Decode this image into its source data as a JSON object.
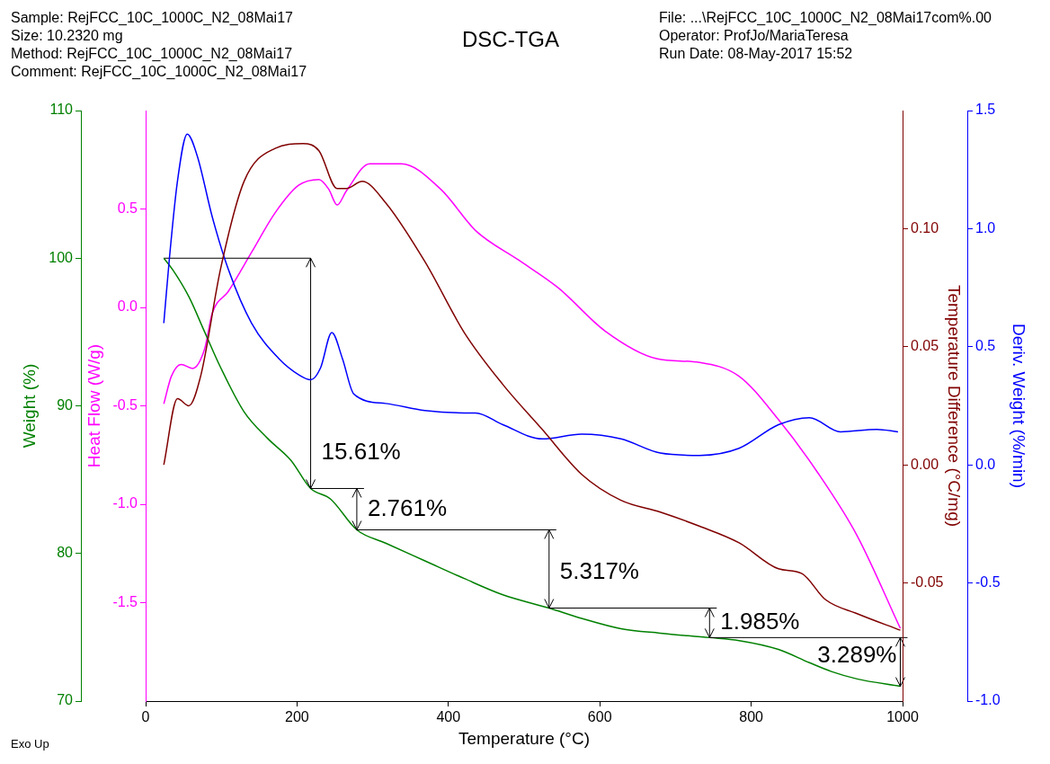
{
  "chart_data": [
    {
      "type": "line",
      "title": "DSC-TGA",
      "xlabel": "Temperature (°C)",
      "ylabel": "Weight (%)",
      "y2label": "Heat Flow (W/g)",
      "xlim": [
        0,
        1000
      ],
      "xticks": [
        0,
        200,
        400,
        600,
        800,
        1000
      ],
      "ylim": [
        70,
        110
      ],
      "yticks": [
        70,
        80,
        90,
        100,
        110
      ],
      "y2lim": [
        -2,
        1
      ],
      "y2ticks": [
        {
          "value": -1.5,
          "label": "-1.5"
        },
        {
          "value": -1,
          "label": "-1.0"
        },
        {
          "value": -0.5,
          "label": "-0.5"
        },
        {
          "value": 0,
          "label": "0.0"
        },
        {
          "value": 0.5,
          "label": "0.5"
        }
      ],
      "series": [
        {
          "color": "#008000",
          "x": [
            24,
            36,
            57,
            78,
            99,
            130,
            161,
            192,
            218,
            244,
            279,
            317,
            369,
            421,
            472,
            533,
            576,
            628,
            680,
            745,
            784,
            836,
            877,
            906,
            940,
            997
          ],
          "values": [
            100,
            99.2,
            97.4,
            95,
            92.6,
            89.6,
            87.8,
            86.3,
            84.4,
            83.7,
            81.6,
            80.7,
            79.5,
            78.3,
            77.2,
            76.3,
            75.6,
            74.9,
            74.6,
            74.3,
            74.1,
            73.5,
            72.6,
            72,
            71.5,
            71
          ]
        },
        {
          "type": "line",
          "color": "#000000",
          "x": [
            24,
            218
          ],
          "values": [
            100,
            100
          ]
        },
        {
          "color": "#ff00ff",
          "axis": "y2",
          "x": [
            24,
            34,
            47,
            62,
            78,
            88,
            109,
            140,
            171,
            202,
            229,
            242,
            253,
            265,
            296,
            338,
            390,
            436,
            493,
            545,
            607,
            675,
            732,
            784,
            836,
            888,
            940,
            997
          ],
          "values": [
            -0.49,
            -0.35,
            -0.29,
            -0.31,
            -0.21,
            -0.03,
            0.08,
            0.28,
            0.48,
            0.62,
            0.65,
            0.6,
            0.52,
            0.59,
            0.73,
            0.73,
            0.6,
            0.39,
            0.24,
            0.1,
            -0.12,
            -0.26,
            -0.28,
            -0.35,
            -0.57,
            -0.84,
            -1.16,
            -1.63
          ]
        }
      ],
      "annotations": [
        "Sample: RejFCC_10C_1000C_N2_08Mai17",
        "Size: 10.2320 mg",
        "Method: RejFCC_10C_1000C_N2_08Mai17",
        "Comment: RejFCC_10C_1000C_N2_08Mai17",
        "File: ...\\RejFCC_10C_1000C_N2_08Mai17com%.00",
        "Operator: ProfJo/MariaTeresa",
        "Run Date: 08-May-2017 15:52",
        "Exo Up",
        {
          "text": "15.61%",
          "x": 218,
          "y": 84.4
        },
        {
          "text": "2.761%",
          "x": 279,
          "y": 81.6
        },
        {
          "text": "5.317%",
          "x": 533,
          "y": 76.3
        },
        {
          "text": "1.985%",
          "x": 745,
          "y": 74.3
        },
        {
          "text": "3.289%",
          "x": 997,
          "y": 71
        }
      ],
      "grid": false,
      "legend": false,
      "marker": "none",
      "line_style": "solid"
    },
    {
      "type": "line",
      "ylabel": "Temperature Difference (°C/mg)",
      "y2label": "Deriv. Weight (%/min)",
      "xlim": [
        0,
        1000
      ],
      "ylim": [
        -0.1,
        0.15
      ],
      "yticks": [
        {
          "value": -0.05,
          "label": "-0.05"
        },
        {
          "value": 0,
          "label": "0.00"
        },
        {
          "value": 0.05,
          "label": "0.05"
        },
        {
          "value": 0.1,
          "label": "0.10"
        }
      ],
      "y2lim": [
        -1,
        1.5
      ],
      "y2ticks": [
        {
          "value": -1,
          "label": "-1.0"
        },
        {
          "value": -0.5,
          "label": "-0.5"
        },
        {
          "value": 0,
          "label": "0.0"
        },
        {
          "value": 0.5,
          "label": "0.5"
        },
        {
          "value": 1,
          "label": "1.0"
        },
        1.5
      ],
      "tick_labels": "y",
      "series": [
        {
          "color": "#800000",
          "x": [
            24,
            42,
            57,
            73,
            99,
            130,
            171,
            208,
            229,
            253,
            265,
            286,
            317,
            369,
            421,
            472,
            524,
            576,
            628,
            680,
            732,
            784,
            836,
            867,
            898,
            940,
            997
          ],
          "values": [
            0,
            0.028,
            0.025,
            0.038,
            0.083,
            0.12,
            0.134,
            0.136,
            0.133,
            0.117,
            0.117,
            0.12,
            0.111,
            0.086,
            0.056,
            0.034,
            0.015,
            -0.004,
            -0.015,
            -0.02,
            -0.026,
            -0.033,
            -0.044,
            -0.046,
            -0.057,
            -0.063,
            -0.07
          ]
        },
        {
          "color": "#0000ff",
          "axis": "y2",
          "x": [
            24,
            31,
            42,
            55,
            68,
            88,
            109,
            140,
            176,
            203,
            218,
            231,
            246,
            260,
            275,
            317,
            369,
            421,
            436,
            472,
            524,
            576,
            628,
            680,
            732,
            784,
            836,
            877,
            918,
            966,
            994
          ],
          "values": [
            0.6,
            0.86,
            1.2,
            1.4,
            1.31,
            1.05,
            0.83,
            0.6,
            0.45,
            0.38,
            0.36,
            0.41,
            0.56,
            0.45,
            0.3,
            0.26,
            0.23,
            0.22,
            0.22,
            0.17,
            0.11,
            0.13,
            0.11,
            0.05,
            0.04,
            0.07,
            0.17,
            0.2,
            0.14,
            0.15,
            0.14
          ]
        }
      ],
      "grid": false,
      "legend": false,
      "marker": "none",
      "line_style": "solid"
    }
  ]
}
